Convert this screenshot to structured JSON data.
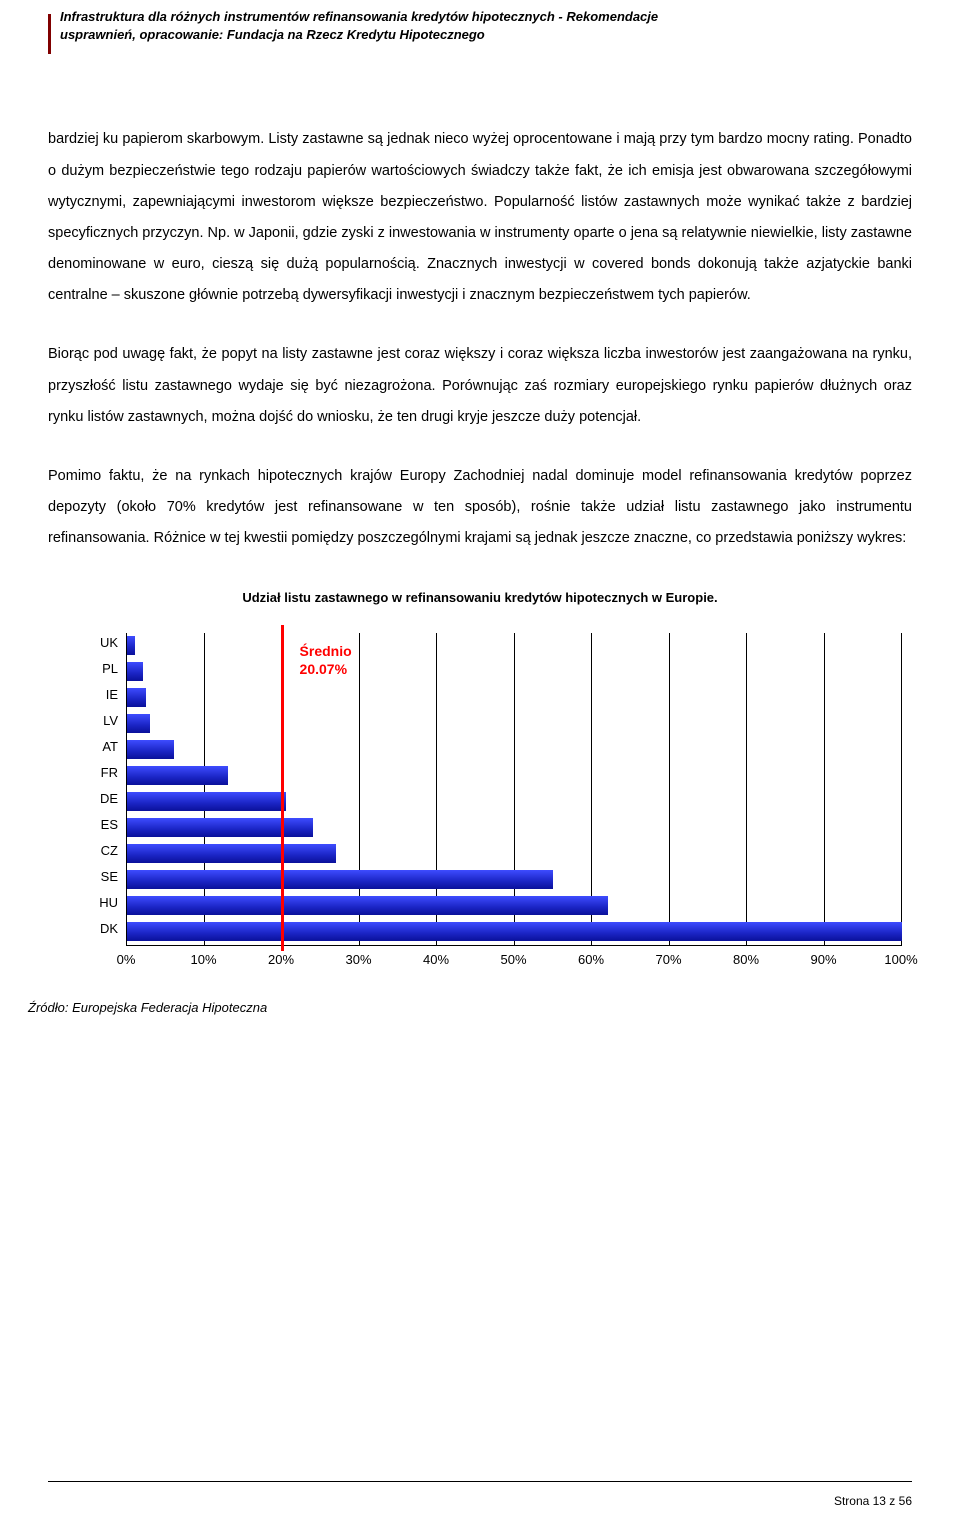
{
  "header": {
    "line1": "Infrastruktura dla różnych instrumentów refinansowania kredytów hipotecznych - Rekomendacje",
    "line2": "usprawnień, opracowanie: Fundacja na Rzecz Kredytu Hipotecznego"
  },
  "paragraphs": {
    "p1": "bardziej ku papierom skarbowym. Listy zastawne są jednak nieco wyżej oprocentowane i mają przy tym bardzo mocny rating. Ponadto o dużym bezpieczeństwie tego rodzaju papierów wartościowych świadczy także fakt, że ich emisja jest obwarowana szczegółowymi wytycznymi, zapewniającymi inwestorom większe bezpieczeństwo. Popularność listów zastawnych może wynikać także z bardziej specyficznych przyczyn. Np. w Japonii, gdzie zyski z inwestowania w instrumenty oparte o jena są relatywnie niewielkie, listy zastawne denominowane w euro, cieszą się dużą popularnością. Znacznych inwestycji w covered bonds dokonują także azjatyckie banki centralne – skuszone głównie potrzebą dywersyfikacji inwestycji i znacznym bezpieczeństwem tych papierów.",
    "p2": "Biorąc pod uwagę fakt, że popyt na listy zastawne jest coraz większy i coraz większa liczba inwestorów jest zaangażowana na rynku, przyszłość listu zastawnego wydaje się być niezagrożona. Porównując zaś rozmiary europejskiego rynku papierów dłużnych  oraz rynku listów zastawnych, można dojść do wniosku, że ten drugi kryje jeszcze duży potencjał.",
    "p3": "Pomimo faktu, że na rynkach hipotecznych krajów Europy Zachodniej nadal dominuje model refinansowania kredytów poprzez depozyty (około 70% kredytów jest refinansowane w ten sposób), rośnie także udział listu zastawnego jako instrumentu refinansowania. Różnice w tej kwestii pomiędzy poszczególnymi krajami są jednak jeszcze znaczne, co przedstawia poniższy wykres:"
  },
  "chart": {
    "title": "Udział listu zastawnego w refinansowaniu kredytów hipotecznych w Europie.",
    "type": "horizontal-bar",
    "xlim_min": 0,
    "xlim_max": 100,
    "xtick_step": 10,
    "xticks": [
      "0%",
      "10%",
      "20%",
      "30%",
      "40%",
      "50%",
      "60%",
      "70%",
      "80%",
      "90%",
      "100%"
    ],
    "bar_color_top": "#3e4cff",
    "bar_color_bottom": "#0a109a",
    "grid_color": "#000000",
    "background_color": "#ffffff",
    "label_fontsize": 13,
    "title_fontsize": 13,
    "avg_line_color": "#ff0000",
    "avg_value": 20.07,
    "avg_label_line1": "Średnio",
    "avg_label_line2": "20.07%",
    "bars": [
      {
        "label": "UK",
        "value": 1
      },
      {
        "label": "PL",
        "value": 2
      },
      {
        "label": "IE",
        "value": 2.5
      },
      {
        "label": "LV",
        "value": 3
      },
      {
        "label": "AT",
        "value": 6
      },
      {
        "label": "FR",
        "value": 13
      },
      {
        "label": "DE",
        "value": 20.5
      },
      {
        "label": "ES",
        "value": 24
      },
      {
        "label": "CZ",
        "value": 27
      },
      {
        "label": "SE",
        "value": 55
      },
      {
        "label": "HU",
        "value": 62
      },
      {
        "label": "DK",
        "value": 100
      }
    ]
  },
  "source": "Źródło: Europejska Federacja Hipoteczna",
  "footer": "Strona 13 z 56"
}
